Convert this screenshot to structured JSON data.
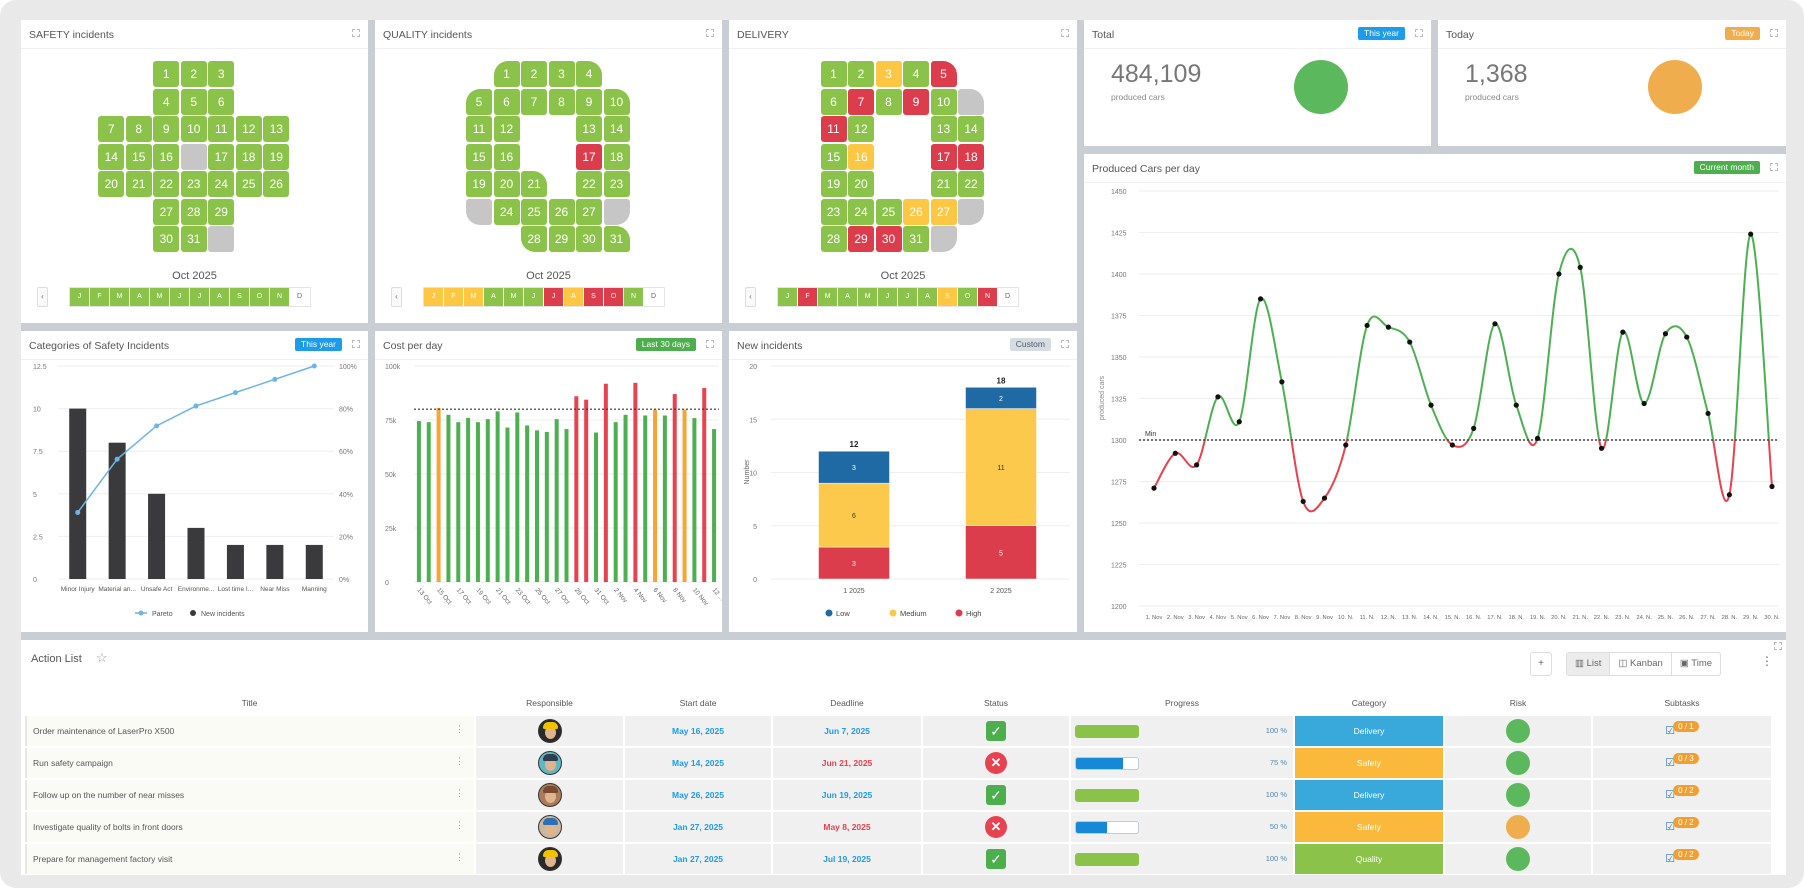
{
  "colors": {
    "green": "#8bc34a",
    "red": "#dc3d4c",
    "yellow": "#fdc643",
    "gray": "#c6c6c6",
    "blue": "#1e9be9",
    "orange": "#f0ad4e",
    "ok_green": "#5cb85c"
  },
  "calendars": {
    "safety": {
      "title": "SAFETY incidents",
      "month_label": "Oct 2025",
      "prev_label": "‹",
      "red_days": [],
      "yellow_days": [],
      "months": [
        {
          "label": "J",
          "status": "green"
        },
        {
          "label": "F",
          "status": "green"
        },
        {
          "label": "M",
          "status": "green"
        },
        {
          "label": "A",
          "status": "green"
        },
        {
          "label": "M",
          "status": "green"
        },
        {
          "label": "J",
          "status": "green"
        },
        {
          "label": "J",
          "status": "green"
        },
        {
          "label": "A",
          "status": "green"
        },
        {
          "label": "S",
          "status": "green"
        },
        {
          "label": "O",
          "status": "green"
        },
        {
          "label": "N",
          "status": "green"
        },
        {
          "label": "D",
          "status": "none"
        }
      ]
    },
    "quality": {
      "title": "QUALITY incidents",
      "month_label": "Oct 2025",
      "prev_label": "‹",
      "red_days": [
        17
      ],
      "yellow_days": [],
      "months": [
        {
          "label": "J",
          "status": "yellow"
        },
        {
          "label": "F",
          "status": "yellow"
        },
        {
          "label": "M",
          "status": "yellow"
        },
        {
          "label": "A",
          "status": "green"
        },
        {
          "label": "M",
          "status": "green"
        },
        {
          "label": "J",
          "status": "green"
        },
        {
          "label": "J",
          "status": "red"
        },
        {
          "label": "A",
          "status": "yellow"
        },
        {
          "label": "S",
          "status": "red"
        },
        {
          "label": "O",
          "status": "red"
        },
        {
          "label": "N",
          "status": "green"
        },
        {
          "label": "D",
          "status": "none"
        }
      ]
    },
    "delivery": {
      "title": "DELIVERY",
      "month_label": "Oct 2025",
      "prev_label": "‹",
      "red_days": [
        5,
        7,
        9,
        11,
        17,
        18,
        29,
        30
      ],
      "yellow_days": [
        3,
        16,
        26,
        27
      ],
      "months": [
        {
          "label": "J",
          "status": "green"
        },
        {
          "label": "F",
          "status": "red"
        },
        {
          "label": "M",
          "status": "green"
        },
        {
          "label": "A",
          "status": "green"
        },
        {
          "label": "M",
          "status": "green"
        },
        {
          "label": "J",
          "status": "green"
        },
        {
          "label": "J",
          "status": "green"
        },
        {
          "label": "A",
          "status": "green"
        },
        {
          "label": "S",
          "status": "yellow"
        },
        {
          "label": "O",
          "status": "green"
        },
        {
          "label": "N",
          "status": "red"
        },
        {
          "label": "D",
          "status": "none"
        }
      ]
    }
  },
  "total": {
    "title": "Total",
    "badge": "This year",
    "value": "484,109",
    "unit": "produced cars",
    "status_color": "#5cb85c"
  },
  "today": {
    "title": "Today",
    "badge": "Today",
    "value": "1,368",
    "unit": "produced cars",
    "status_color": "#f0ad4e"
  },
  "panels": {
    "categories": {
      "title": "Categories of Safety Incidents",
      "badge": "This year"
    },
    "cost": {
      "title": "Cost per day",
      "badge": "Last 30 days"
    },
    "new_incidents": {
      "title": "New incidents",
      "badge": "Custom"
    },
    "produced": {
      "title": "Produced Cars per day",
      "badge": "Current month"
    }
  },
  "chart_data": [
    {
      "type": "bar",
      "id": "categories",
      "categories": [
        "Minor Injury",
        "Material an...",
        "Unsafe Act",
        "Environme...",
        "Lost time I...",
        "Near Miss",
        "Manning"
      ],
      "series": [
        {
          "name": "New incidents",
          "type": "bar",
          "values": [
            10,
            8,
            5,
            3,
            2,
            2,
            2
          ],
          "color": "#3a3a3c"
        },
        {
          "name": "Pareto",
          "type": "line",
          "axis": "right",
          "values": [
            31.25,
            56.25,
            71.9,
            81.25,
            87.5,
            93.75,
            100
          ],
          "color": "#6cb4e4"
        }
      ],
      "ylim": [
        0,
        12.5
      ],
      "yticks": [
        "0",
        "2.5",
        "5",
        "7.5",
        "10",
        "12.5"
      ],
      "y2lim": [
        0,
        100
      ],
      "y2ticks": [
        "0%",
        "20%",
        "40%",
        "60%",
        "80%",
        "100%"
      ],
      "legend": "bottom",
      "grid": true
    },
    {
      "type": "bar",
      "id": "cost",
      "categories": [
        "13 Oct",
        "14 Oct",
        "15 Oct",
        "16 Oct",
        "17 Oct",
        "18 Oct",
        "19 Oct",
        "20 Oct",
        "21 Oct",
        "22 Oct",
        "23 Oct",
        "24 Oct",
        "25 Oct",
        "26 Oct",
        "27 Oct",
        "28 Oct",
        "29 Oct",
        "30 Oct",
        "31 Oct",
        "1 Nov",
        "2 Nov",
        "3 Nov",
        "4 Nov",
        "5 Nov",
        "6 Nov",
        "7 Nov",
        "8 Nov",
        "9 Nov",
        "10 Nov",
        "11 Nov",
        "12 ..."
      ],
      "values": [
        74500,
        74000,
        80600,
        77400,
        74000,
        76000,
        74000,
        75400,
        79000,
        71500,
        78500,
        72500,
        70200,
        69500,
        75400,
        70800,
        86000,
        84400,
        69200,
        91800,
        74000,
        77400,
        92200,
        77100,
        79800,
        77100,
        87000,
        79800,
        75900,
        89800,
        70800
      ],
      "value_status": [
        "green",
        "green",
        "orange",
        "green",
        "green",
        "green",
        "green",
        "green",
        "green",
        "green",
        "green",
        "green",
        "green",
        "green",
        "green",
        "green",
        "red",
        "red",
        "green",
        "red",
        "green",
        "green",
        "red",
        "green",
        "orange",
        "green",
        "red",
        "orange",
        "green",
        "red",
        "green"
      ],
      "status_colors": {
        "green": "#4cb050",
        "orange": "#f7a435",
        "red": "#e8414f"
      },
      "reference_line": 80000,
      "ylim": [
        0,
        100000
      ],
      "yticks": [
        "0",
        "25k",
        "50k",
        "75k",
        "100k"
      ],
      "grid": true
    },
    {
      "type": "bar",
      "id": "new_incidents",
      "stacked": true,
      "categories": [
        "1 2025",
        "2 2025"
      ],
      "series": [
        {
          "name": "High",
          "values": [
            3,
            5
          ],
          "color": "#dc3d4c"
        },
        {
          "name": "Medium",
          "values": [
            6,
            11
          ],
          "color": "#fdc94c"
        },
        {
          "name": "Low",
          "values": [
            3,
            2
          ],
          "color": "#1f6aa5"
        }
      ],
      "totals": [
        "12",
        "18"
      ],
      "ylabel": "Number",
      "ylim": [
        0,
        20
      ],
      "yticks": [
        "0",
        "5",
        "10",
        "15",
        "20"
      ],
      "legend_order": [
        "Low",
        "Medium",
        "High"
      ],
      "legend": "bottom",
      "grid": true
    },
    {
      "type": "line",
      "id": "produced",
      "x": [
        "1. Nov",
        "2. Nov",
        "3. Nov",
        "4. Nov",
        "5. Nov",
        "6. Nov",
        "7. Nov",
        "8. Nov",
        "9. Nov",
        "10. N.",
        "11. N.",
        "12. N.",
        "13. N.",
        "14. N.",
        "15. N.",
        "16. N.",
        "17. N.",
        "18. N.",
        "19. N.",
        "20. N.",
        "21. N.",
        "22. N.",
        "23. N.",
        "24. N.",
        "25. N.",
        "26. N.",
        "27. N.",
        "28. N.",
        "29. N.",
        "30. N."
      ],
      "values": [
        1271,
        1292,
        1285,
        1326,
        1311,
        1385,
        1335,
        1263,
        1265,
        1297,
        1369,
        1368,
        1359,
        1321,
        1297,
        1307,
        1370,
        1321,
        1301,
        1400,
        1404,
        1295,
        1365,
        1322,
        1364,
        1362,
        1316,
        1267,
        1424,
        1272
      ],
      "min_line": {
        "value": 1300,
        "label": "Min"
      },
      "above_color": "#4cb050",
      "below_color": "#e8414f",
      "ylabel": "produced cars",
      "ylim": [
        1200,
        1450
      ],
      "yticks": [
        "1200",
        "1225",
        "1250",
        "1275",
        "1300",
        "1325",
        "1350",
        "1375",
        "1400",
        "1425",
        "1450"
      ],
      "grid": true
    }
  ],
  "action_list": {
    "title": "Action List",
    "add_label": "+",
    "views": [
      "List",
      "Kanban",
      "Time"
    ],
    "active_view": "List",
    "menu": "⋮",
    "columns": [
      "Title",
      "Responsible",
      "Start date",
      "Deadline",
      "Status",
      "Progress",
      "Category",
      "Risk",
      "Subtasks"
    ],
    "rows": [
      {
        "title": "Order maintenance of LaserPro X500",
        "avatar": "worker-yellow-helmet",
        "start": "May 16, 2025",
        "deadline": "Jun 7, 2025",
        "deadline_overdue": false,
        "status": "done",
        "progress": 100,
        "progress_label": "100 %",
        "category": "Delivery",
        "category_color": "#39a9db",
        "risk": "#5cb85c",
        "subtasks": "0 / 1"
      },
      {
        "title": "Run safety campaign",
        "avatar": "person-teal",
        "start": "May 14, 2025",
        "deadline": "Jun 21, 2025",
        "deadline_overdue": true,
        "status": "failed",
        "progress": 75,
        "progress_label": "75 %",
        "category": "Safety",
        "category_color": "#fbb93c",
        "risk": "#5cb85c",
        "subtasks": "0 / 3"
      },
      {
        "title": "Follow up on the number of near misses",
        "avatar": "person-brown",
        "start": "May 26, 2025",
        "deadline": "Jun 19, 2025",
        "deadline_overdue": false,
        "status": "done",
        "progress": 100,
        "progress_label": "100 %",
        "category": "Delivery",
        "category_color": "#39a9db",
        "risk": "#5cb85c",
        "subtasks": "0 / 2"
      },
      {
        "title": "Investigate quality of bolts in front doors",
        "avatar": "worker-blue-helmet",
        "start": "Jan 27, 2025",
        "deadline": "May 8, 2025",
        "deadline_overdue": true,
        "status": "failed",
        "progress": 50,
        "progress_label": "50 %",
        "category": "Safety",
        "category_color": "#fbb93c",
        "risk": "#f0ad4e",
        "subtasks": "0 / 2"
      },
      {
        "title": "Prepare for management factory visit",
        "avatar": "worker-yellow-helmet",
        "start": "Jan 27, 2025",
        "deadline": "Jul 19, 2025",
        "deadline_overdue": false,
        "status": "done",
        "progress": 100,
        "progress_label": "100 %",
        "category": "Quality",
        "category_color": "#8bc34a",
        "risk": "#5cb85c",
        "subtasks": "0 / 2"
      }
    ]
  }
}
